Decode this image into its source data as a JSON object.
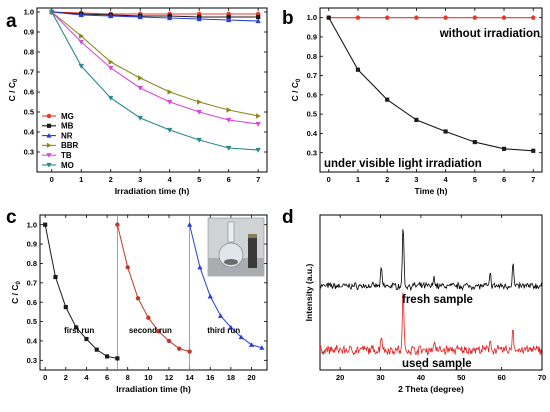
{
  "chart_data": [
    {
      "panel": "a",
      "type": "line",
      "xlabel": "Irradiation time (h)",
      "ylabel": "C / C0",
      "xlim": [
        -0.5,
        7.3
      ],
      "ylim": [
        0.2,
        1.02
      ],
      "xticks": [
        0,
        1,
        2,
        3,
        4,
        5,
        6,
        7
      ],
      "yticks": [
        0.3,
        0.4,
        0.5,
        0.6,
        0.7,
        0.8,
        0.9,
        1.0
      ],
      "ytick_labels": [
        "0.3",
        "0.4",
        "0.5",
        "0.6",
        "0.7",
        "0.8",
        "0.9",
        "1.0"
      ],
      "legend_position": "bottom-left",
      "series": [
        {
          "name": "MG",
          "color": "#e8392b",
          "marker": "circle",
          "x": [
            0,
            1,
            2,
            3,
            4,
            5,
            6,
            7
          ],
          "y": [
            1.0,
            0.995,
            0.99,
            0.99,
            0.99,
            0.99,
            0.99,
            0.99
          ]
        },
        {
          "name": "MB",
          "color": "#1a1a1a",
          "marker": "square",
          "x": [
            0,
            1,
            2,
            3,
            4,
            5,
            6,
            7
          ],
          "y": [
            1.0,
            0.99,
            0.985,
            0.98,
            0.98,
            0.975,
            0.975,
            0.975
          ]
        },
        {
          "name": "NR",
          "color": "#2a3fd6",
          "marker": "triangle",
          "x": [
            0,
            1,
            2,
            3,
            4,
            5,
            6,
            7
          ],
          "y": [
            1.0,
            0.985,
            0.98,
            0.975,
            0.97,
            0.965,
            0.96,
            0.955
          ]
        },
        {
          "name": "BBR",
          "color": "#8a8a1e",
          "marker": "triangle-right",
          "x": [
            0,
            1,
            2,
            3,
            4,
            5,
            6,
            7
          ],
          "y": [
            1.0,
            0.88,
            0.75,
            0.67,
            0.6,
            0.55,
            0.51,
            0.48
          ]
        },
        {
          "name": "TB",
          "color": "#d64ad6",
          "marker": "triangle-down",
          "x": [
            0,
            1,
            2,
            3,
            4,
            5,
            6,
            7
          ],
          "y": [
            1.0,
            0.85,
            0.72,
            0.62,
            0.55,
            0.5,
            0.46,
            0.44
          ]
        },
        {
          "name": "MO",
          "color": "#2a8a8e",
          "marker": "triangle-down",
          "x": [
            0,
            1,
            2,
            3,
            4,
            5,
            6,
            7
          ],
          "y": [
            1.0,
            0.73,
            0.57,
            0.47,
            0.41,
            0.36,
            0.32,
            0.31
          ]
        }
      ]
    },
    {
      "panel": "b",
      "type": "line",
      "xlabel": "Time (h)",
      "ylabel": "C / C0",
      "xlim": [
        -0.3,
        7.3
      ],
      "ylim": [
        0.2,
        1.05
      ],
      "xticks": [
        0,
        1,
        2,
        3,
        4,
        5,
        6,
        7
      ],
      "yticks": [
        0.2,
        0.3,
        0.4,
        0.5,
        0.6,
        0.7,
        0.8,
        0.9,
        1.0
      ],
      "ytick_labels": [
        "",
        "0.3",
        "0.4",
        "0.5",
        "0.6",
        "0.7",
        "0.8",
        "0.9",
        "1.0"
      ],
      "annotations": [
        "without irradiation",
        "under visible light irradiation"
      ],
      "series": [
        {
          "name": "without irradiation",
          "color": "#e8392b",
          "marker": "circle",
          "x": [
            0,
            1,
            2,
            3,
            4,
            5,
            6,
            7
          ],
          "y": [
            1.0,
            1.0,
            1.0,
            1.0,
            1.0,
            1.0,
            1.0,
            1.0
          ]
        },
        {
          "name": "under visible light irradiation",
          "color": "#1a1a1a",
          "marker": "square",
          "x": [
            0,
            1,
            2,
            3,
            4,
            5,
            6,
            7
          ],
          "y": [
            1.0,
            0.73,
            0.575,
            0.47,
            0.41,
            0.355,
            0.32,
            0.31
          ]
        }
      ]
    },
    {
      "panel": "c",
      "type": "line",
      "xlabel": "Irradiation time (h)",
      "ylabel": "C / C0",
      "xlim": [
        -0.5,
        21.5
      ],
      "ylim": [
        0.25,
        1.05
      ],
      "xticks": [
        0,
        2,
        4,
        6,
        8,
        10,
        12,
        14,
        16,
        18,
        20
      ],
      "yticks": [
        0.3,
        0.4,
        0.5,
        0.6,
        0.7,
        0.8,
        0.9,
        1.0
      ],
      "ytick_labels": [
        "0.3",
        "0.4",
        "0.5",
        "0.6",
        "0.7",
        "0.8",
        "0.9",
        "1.0"
      ],
      "separators_x": [
        7,
        14
      ],
      "annotations": [
        "first run",
        "second run",
        "third run"
      ],
      "series": [
        {
          "name": "first run",
          "color": "#1a1a1a",
          "marker": "square",
          "x": [
            0,
            1,
            2,
            3,
            4,
            5,
            6,
            7
          ],
          "y": [
            1.0,
            0.73,
            0.575,
            0.47,
            0.41,
            0.355,
            0.32,
            0.31
          ]
        },
        {
          "name": "second run",
          "color": "#c0392b",
          "marker": "circle",
          "x": [
            7,
            8,
            9,
            10,
            11,
            12,
            13,
            14
          ],
          "y": [
            1.0,
            0.78,
            0.62,
            0.52,
            0.45,
            0.4,
            0.36,
            0.345
          ]
        },
        {
          "name": "third run",
          "color": "#2a3fd6",
          "marker": "triangle",
          "x": [
            14,
            15,
            16,
            17,
            18,
            19,
            20,
            21
          ],
          "y": [
            1.0,
            0.78,
            0.63,
            0.53,
            0.47,
            0.42,
            0.38,
            0.365
          ]
        }
      ]
    },
    {
      "panel": "d",
      "type": "line",
      "xlabel": "2 Theta (degree)",
      "ylabel": "Intensity (a.u.)",
      "xlim": [
        15,
        70
      ],
      "xticks": [
        20,
        30,
        40,
        50,
        60,
        70
      ],
      "annotations": [
        "fresh sample",
        "used sample"
      ],
      "series": [
        {
          "name": "fresh sample",
          "color": "#000000",
          "peaks": [
            30.2,
            35.6,
            43.3,
            57.2,
            62.8
          ]
        },
        {
          "name": "used sample",
          "color": "#e02020",
          "peaks": [
            30.2,
            35.6,
            43.3,
            57.2,
            62.8
          ]
        }
      ]
    }
  ],
  "panels": {
    "a": {
      "letter": "a"
    },
    "b": {
      "letter": "b"
    },
    "c": {
      "letter": "c"
    },
    "d": {
      "letter": "d"
    }
  },
  "ylabel_parts": {
    "main": "C / C",
    "sub": "0"
  },
  "inset": {
    "image": "photo-of-flask-and-magnet"
  }
}
